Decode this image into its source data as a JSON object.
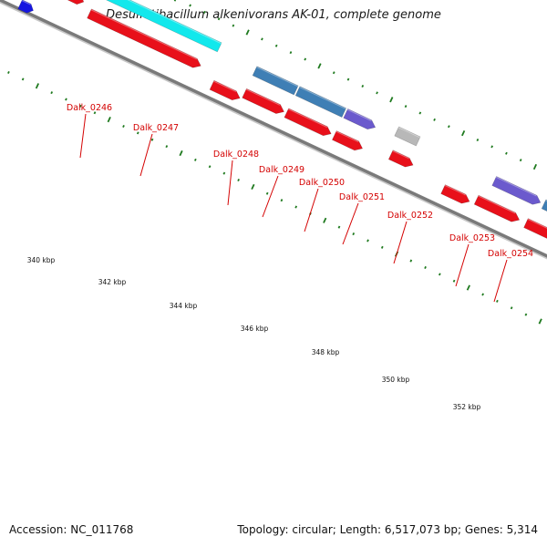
{
  "title": "Desulfatibacillum alkenivorans AK-01, complete genome",
  "footer": {
    "accession": "Accession: NC_011768",
    "summary": "Topology: circular; Length: 6,517,073 bp; Genes: 5,314"
  },
  "colors": {
    "backbone": "#7a7a7a",
    "tick": "#1f7a1f",
    "label": "#d40000",
    "cds_red": "#e8101a",
    "cyan": "#12e8ec",
    "steelblue": "#3f7fb5",
    "purple": "#6b5acd",
    "gray": "#b8b8b8",
    "blue": "#1616e0"
  },
  "scale_labels": [
    "340 kbp",
    "342 kbp",
    "344 kbp",
    "346 kbp",
    "348 kbp",
    "350 kbp",
    "352 kbp"
  ],
  "gene_labels": [
    "Dalk_0246",
    "Dalk_0247",
    "Dalk_0248",
    "Dalk_0249",
    "Dalk_0250",
    "Dalk_0251",
    "Dalk_0252",
    "Dalk_0253",
    "Dalk_0254"
  ]
}
